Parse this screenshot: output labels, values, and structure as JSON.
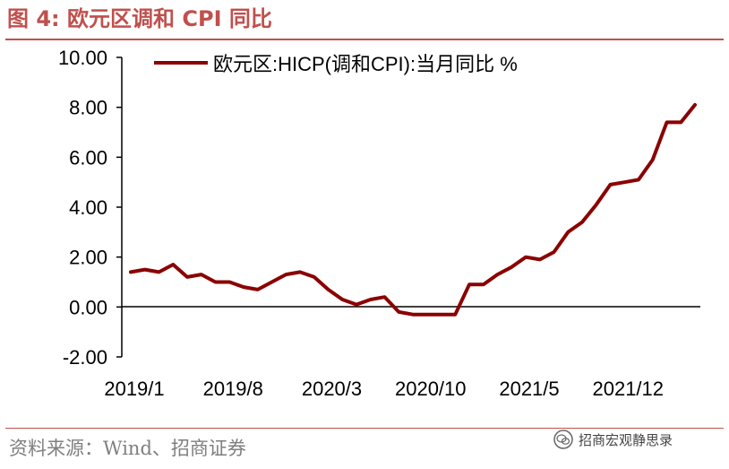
{
  "figure": {
    "title": "图 4:  欧元区调和 CPI 同比",
    "source": "资料来源：Wind、招商证券",
    "watermark": "招商宏观静思录",
    "watermark_icon": "wechat-icon"
  },
  "colors": {
    "accent": "#c0504d",
    "series": "#8b0000",
    "axis": "#000000"
  },
  "chart_data": {
    "type": "line",
    "title": "",
    "xlabel": "",
    "ylabel": "",
    "ylim": [
      -2,
      10
    ],
    "yticks": [
      "10.00",
      "8.00",
      "6.00",
      "4.00",
      "2.00",
      "0.00",
      "-2.00"
    ],
    "grid": false,
    "legend": "top",
    "xtick_labels": [
      "2019/1",
      "2019/8",
      "2020/3",
      "2020/10",
      "2021/5",
      "2021/12"
    ],
    "xtick_index": [
      0,
      7,
      14,
      21,
      28,
      35
    ],
    "series": [
      {
        "name": "欧元区:HICP(调和CPI):当月同比 %",
        "values": [
          1.4,
          1.5,
          1.4,
          1.7,
          1.2,
          1.3,
          1.0,
          1.0,
          0.8,
          0.7,
          1.0,
          1.3,
          1.4,
          1.2,
          0.7,
          0.3,
          0.1,
          0.3,
          0.4,
          -0.2,
          -0.3,
          -0.3,
          -0.3,
          -0.3,
          0.9,
          0.9,
          1.3,
          1.6,
          2.0,
          1.9,
          2.2,
          3.0,
          3.4,
          4.1,
          4.9,
          5.0,
          5.1,
          5.9,
          7.4,
          7.4,
          8.1
        ]
      }
    ]
  }
}
